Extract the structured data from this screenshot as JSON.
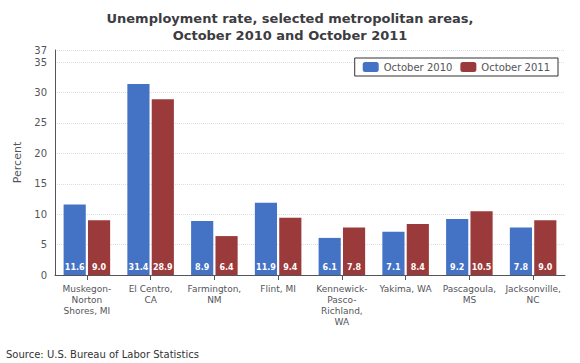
{
  "chart_data": {
    "type": "bar",
    "title": "Unemployment rate, selected metropolitan areas,\nOctober 2010 and October 2011",
    "categories": [
      "Muskegon-\nNorton\nShores, MI",
      "El Centro,\nCA",
      "Farmington,\nNM",
      "Flint, MI",
      "Kennewick-\nPasco-\nRichland,\nWA",
      "Yakima, WA",
      "Pascagoula,\nMS",
      "Jacksonville,\nNC"
    ],
    "series": [
      {
        "name": "October 2010",
        "color": "#4472C4",
        "values": [
          11.6,
          31.4,
          8.9,
          11.9,
          6.1,
          7.1,
          9.2,
          7.8
        ],
        "value_labels": [
          "11.6",
          "31.4",
          "8.9",
          "11.9",
          "6.1",
          "7.1",
          "9.2",
          "7.8"
        ]
      },
      {
        "name": "October 2011",
        "color": "#9B3A3A",
        "values": [
          9.0,
          28.9,
          6.4,
          9.4,
          7.8,
          8.4,
          10.5,
          9.0
        ],
        "value_labels": [
          "9.0",
          "28.9",
          "6.4",
          "9.4",
          "7.8",
          "8.4",
          "10.5",
          "9.0"
        ]
      }
    ],
    "ylabel": "Percent",
    "ylim": [
      0,
      37
    ],
    "yticks": [
      0,
      5,
      10,
      15,
      20,
      25,
      30,
      35
    ],
    "grid": true,
    "legend": "upper right",
    "data_labels": true,
    "annotations": [
      "Source: U.S. Bureau of Labor Statistics"
    ]
  }
}
